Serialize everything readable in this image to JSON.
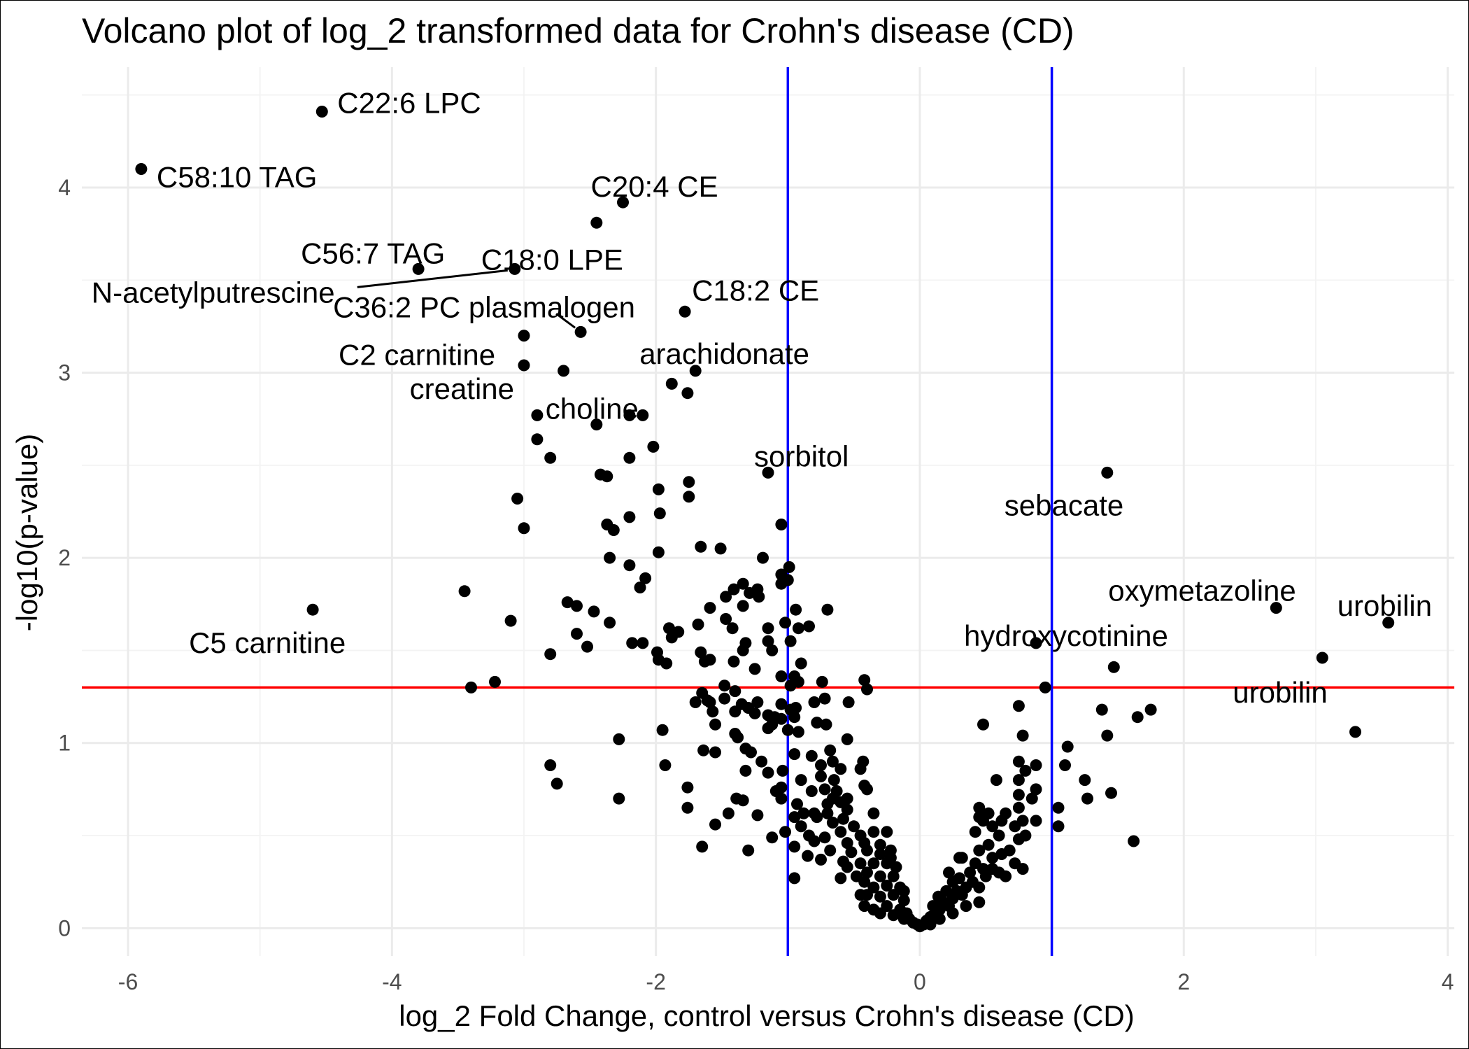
{
  "chart_data": {
    "type": "scatter",
    "title": "Volcano plot of log_2 transformed data for Crohn's disease (CD)",
    "xlabel": "log_2 Fold Change, control versus Crohn's disease (CD)",
    "ylabel": "-log10(p-value)",
    "xlim": [
      -6.35,
      4.05
    ],
    "ylim": [
      -0.15,
      4.65
    ],
    "x_ticks": [
      -6,
      -4,
      -2,
      0,
      2,
      4
    ],
    "y_ticks": [
      0,
      1,
      2,
      3,
      4
    ],
    "x_tick_labels": [
      "-6",
      "-4",
      "-2",
      "0",
      "2",
      "4"
    ],
    "y_tick_labels": [
      "0",
      "1",
      "2",
      "3",
      "4"
    ],
    "grid": true,
    "legend": "none",
    "colors": {
      "point": "#000000",
      "vline": "#0000ff",
      "hline": "#ff0000",
      "grid": "#ebebeb"
    },
    "reference_lines": {
      "vertical_x": [
        -1,
        1
      ],
      "horizontal_y": 1.3
    },
    "labels": [
      {
        "text": "C22:6 LPC",
        "x": -4.53,
        "y": 4.41
      },
      {
        "text": "C58:10 TAG",
        "x": -5.9,
        "y": 4.1
      },
      {
        "text": "C20:4 CE",
        "x": -2.25,
        "y": 3.92
      },
      {
        "text": "C56:7 TAG",
        "x": -3.8,
        "y": 3.56
      },
      {
        "text": "C18:0 LPE",
        "x": -3.07,
        "y": 3.56
      },
      {
        "text": "N-acetylputrescine",
        "x": -3.07,
        "y": 3.56
      },
      {
        "text": "C36:2 PC plasmalogen",
        "x": -2.57,
        "y": 3.22
      },
      {
        "text": "C18:2 CE",
        "x": -1.78,
        "y": 3.33
      },
      {
        "text": "C2 carnitine",
        "x": -3.0,
        "y": 3.2
      },
      {
        "text": "arachidonate",
        "x": -1.7,
        "y": 3.01
      },
      {
        "text": "creatine",
        "x": -2.7,
        "y": 3.01
      },
      {
        "text": "choline",
        "x": -2.45,
        "y": 2.72
      },
      {
        "text": "sorbitol",
        "x": -1.15,
        "y": 2.46
      },
      {
        "text": "sebacate",
        "x": 1.42,
        "y": 2.46
      },
      {
        "text": "oxymetazoline",
        "x": 2.7,
        "y": 1.73
      },
      {
        "text": "urobilin",
        "x": 3.55,
        "y": 1.65
      },
      {
        "text": "C5 carnitine",
        "x": -4.6,
        "y": 1.72
      },
      {
        "text": "hydroxycotinine",
        "x": 0.88,
        "y": 1.54
      },
      {
        "text": "urobilin",
        "x": 3.05,
        "y": 1.46
      }
    ],
    "points": [
      [
        -4.53,
        4.41
      ],
      [
        -5.9,
        4.1
      ],
      [
        -2.25,
        3.92
      ],
      [
        -2.45,
        3.81
      ],
      [
        -3.8,
        3.56
      ],
      [
        -3.07,
        3.56
      ],
      [
        -1.78,
        3.33
      ],
      [
        -2.57,
        3.22
      ],
      [
        -3.0,
        3.2
      ],
      [
        -3.0,
        3.04
      ],
      [
        -2.7,
        3.01
      ],
      [
        -1.7,
        3.01
      ],
      [
        -1.88,
        2.94
      ],
      [
        -1.76,
        2.89
      ],
      [
        -2.9,
        2.77
      ],
      [
        -2.2,
        2.77
      ],
      [
        -2.1,
        2.77
      ],
      [
        -2.45,
        2.72
      ],
      [
        -2.9,
        2.64
      ],
      [
        -2.02,
        2.6
      ],
      [
        -2.8,
        2.54
      ],
      [
        -2.2,
        2.54
      ],
      [
        -1.15,
        2.46
      ],
      [
        -2.42,
        2.45
      ],
      [
        -2.37,
        2.44
      ],
      [
        -1.75,
        2.41
      ],
      [
        -1.98,
        2.37
      ],
      [
        -1.75,
        2.33
      ],
      [
        -3.05,
        2.32
      ],
      [
        -2.2,
        2.22
      ],
      [
        -1.97,
        2.24
      ],
      [
        -3.0,
        2.16
      ],
      [
        -2.37,
        2.18
      ],
      [
        -2.32,
        2.15
      ],
      [
        -1.05,
        2.18
      ],
      [
        -1.66,
        2.06
      ],
      [
        -1.51,
        2.05
      ],
      [
        -1.98,
        2.03
      ],
      [
        -2.35,
        2.0
      ],
      [
        -1.19,
        2.0
      ],
      [
        -2.2,
        1.96
      ],
      [
        -0.99,
        1.95
      ],
      [
        -2.08,
        1.89
      ],
      [
        -1.34,
        1.86
      ],
      [
        -1.05,
        1.91
      ],
      [
        -1.23,
        1.83
      ],
      [
        -2.12,
        1.84
      ],
      [
        -1.29,
        1.81
      ],
      [
        -1.41,
        1.83
      ],
      [
        -1.05,
        1.86
      ],
      [
        -1.0,
        1.88
      ],
      [
        -3.45,
        1.82
      ],
      [
        -1.22,
        1.79
      ],
      [
        -1.47,
        1.79
      ],
      [
        -1.34,
        1.74
      ],
      [
        -1.59,
        1.73
      ],
      [
        -2.67,
        1.76
      ],
      [
        -2.6,
        1.74
      ],
      [
        -2.47,
        1.71
      ],
      [
        -0.94,
        1.72
      ],
      [
        -0.7,
        1.72
      ],
      [
        -3.1,
        1.66
      ],
      [
        -2.35,
        1.65
      ],
      [
        -1.68,
        1.64
      ],
      [
        -1.02,
        1.65
      ],
      [
        -1.47,
        1.67
      ],
      [
        -1.9,
        1.62
      ],
      [
        -0.84,
        1.63
      ],
      [
        -0.92,
        1.62
      ],
      [
        -1.83,
        1.6
      ],
      [
        -2.6,
        1.59
      ],
      [
        -1.42,
        1.62
      ],
      [
        -1.15,
        1.62
      ],
      [
        -2.18,
        1.54
      ],
      [
        -2.1,
        1.54
      ],
      [
        -1.88,
        1.57
      ],
      [
        -1.32,
        1.54
      ],
      [
        -1.15,
        1.55
      ],
      [
        -0.98,
        1.55
      ],
      [
        -2.52,
        1.52
      ],
      [
        -1.12,
        1.5
      ],
      [
        -1.66,
        1.49
      ],
      [
        -1.34,
        1.5
      ],
      [
        -2.8,
        1.48
      ],
      [
        -1.99,
        1.49
      ],
      [
        -1.98,
        1.45
      ],
      [
        -1.92,
        1.43
      ],
      [
        -1.59,
        1.45
      ],
      [
        -1.63,
        1.44
      ],
      [
        -1.41,
        1.44
      ],
      [
        -1.25,
        1.4
      ],
      [
        -0.9,
        1.43
      ],
      [
        -1.05,
        1.36
      ],
      [
        -0.95,
        1.36
      ],
      [
        -0.92,
        1.33
      ],
      [
        -0.74,
        1.33
      ],
      [
        -0.42,
        1.34
      ],
      [
        -3.22,
        1.33
      ],
      [
        -3.4,
        1.3
      ],
      [
        -1.48,
        1.31
      ],
      [
        -1.65,
        1.27
      ],
      [
        -1.4,
        1.28
      ],
      [
        -0.98,
        1.31
      ],
      [
        -0.4,
        1.29
      ],
      [
        -1.35,
        1.21
      ],
      [
        -1.48,
        1.24
      ],
      [
        -1.61,
        1.23
      ],
      [
        -1.59,
        1.22
      ],
      [
        -1.7,
        1.22
      ],
      [
        -1.3,
        1.19
      ],
      [
        -1.23,
        1.22
      ],
      [
        -1.05,
        1.21
      ],
      [
        -0.72,
        1.24
      ],
      [
        -0.54,
        1.22
      ],
      [
        -0.94,
        1.19
      ],
      [
        -0.8,
        1.22
      ],
      [
        -0.98,
        1.18
      ],
      [
        -1.1,
        1.14
      ],
      [
        -1.4,
        1.17
      ],
      [
        -1.57,
        1.17
      ],
      [
        -1.25,
        1.16
      ],
      [
        -1.15,
        1.15
      ],
      [
        -1.05,
        1.13
      ],
      [
        -0.95,
        1.14
      ],
      [
        -0.78,
        1.11
      ],
      [
        -0.71,
        1.1
      ],
      [
        -1.12,
        1.1
      ],
      [
        -1.55,
        1.1
      ],
      [
        -1.0,
        1.07
      ],
      [
        -1.95,
        1.07
      ],
      [
        -1.4,
        1.05
      ],
      [
        -1.15,
        1.08
      ],
      [
        -0.92,
        1.06
      ],
      [
        -0.55,
        1.02
      ],
      [
        -2.28,
        1.02
      ],
      [
        -1.38,
        1.03
      ],
      [
        -1.64,
        0.96
      ],
      [
        -1.55,
        0.95
      ],
      [
        -1.32,
        0.97
      ],
      [
        -1.28,
        0.95
      ],
      [
        -0.95,
        0.94
      ],
      [
        -0.82,
        0.93
      ],
      [
        -0.68,
        0.96
      ],
      [
        -0.43,
        0.9
      ],
      [
        -0.66,
        0.9
      ],
      [
        -0.75,
        0.88
      ],
      [
        -0.6,
        0.86
      ],
      [
        -0.45,
        0.86
      ],
      [
        -1.93,
        0.88
      ],
      [
        -2.8,
        0.88
      ],
      [
        -1.2,
        0.9
      ],
      [
        -1.32,
        0.85
      ],
      [
        -1.04,
        0.85
      ],
      [
        -1.15,
        0.84
      ],
      [
        -0.9,
        0.8
      ],
      [
        -0.75,
        0.82
      ],
      [
        -0.65,
        0.8
      ],
      [
        -0.42,
        0.77
      ],
      [
        -0.4,
        0.75
      ],
      [
        -0.63,
        0.74
      ],
      [
        -0.72,
        0.75
      ],
      [
        -0.82,
        0.74
      ],
      [
        -1.05,
        0.76
      ],
      [
        -1.09,
        0.74
      ],
      [
        -1.76,
        0.76
      ],
      [
        -2.75,
        0.78
      ],
      [
        -1.39,
        0.7
      ],
      [
        -1.34,
        0.69
      ],
      [
        -1.05,
        0.7
      ],
      [
        -0.93,
        0.67
      ],
      [
        -0.66,
        0.7
      ],
      [
        -0.55,
        0.7
      ],
      [
        -0.6,
        0.68
      ],
      [
        -0.7,
        0.67
      ],
      [
        -1.76,
        0.65
      ],
      [
        -2.28,
        0.7
      ],
      [
        -0.88,
        0.62
      ],
      [
        -0.8,
        0.62
      ],
      [
        -0.7,
        0.62
      ],
      [
        -0.55,
        0.64
      ],
      [
        -1.23,
        0.61
      ],
      [
        -1.45,
        0.62
      ],
      [
        -0.95,
        0.6
      ],
      [
        -0.78,
        0.6
      ],
      [
        -0.66,
        0.57
      ],
      [
        -0.58,
        0.59
      ],
      [
        -0.35,
        0.62
      ],
      [
        -1.55,
        0.56
      ],
      [
        -0.9,
        0.55
      ],
      [
        -0.6,
        0.52
      ],
      [
        -0.5,
        0.55
      ],
      [
        -0.45,
        0.5
      ],
      [
        -0.35,
        0.52
      ],
      [
        -0.25,
        0.52
      ],
      [
        -1.02,
        0.52
      ],
      [
        -0.84,
        0.5
      ],
      [
        -0.72,
        0.49
      ],
      [
        -1.12,
        0.49
      ],
      [
        -0.8,
        0.47
      ],
      [
        -0.55,
        0.46
      ],
      [
        -0.42,
        0.46
      ],
      [
        -0.3,
        0.45
      ],
      [
        -1.65,
        0.44
      ],
      [
        -1.3,
        0.42
      ],
      [
        -0.95,
        0.44
      ],
      [
        -0.68,
        0.42
      ],
      [
        -0.52,
        0.41
      ],
      [
        -0.4,
        0.42
      ],
      [
        -0.3,
        0.4
      ],
      [
        -0.22,
        0.42
      ],
      [
        -0.85,
        0.39
      ],
      [
        -0.75,
        0.37
      ],
      [
        -0.58,
        0.36
      ],
      [
        -0.45,
        0.35
      ],
      [
        -0.35,
        0.35
      ],
      [
        -0.25,
        0.35
      ],
      [
        -0.18,
        0.33
      ],
      [
        -0.95,
        0.27
      ],
      [
        -0.55,
        0.33
      ],
      [
        -0.4,
        0.3
      ],
      [
        -0.3,
        0.28
      ],
      [
        -0.2,
        0.28
      ],
      [
        -0.6,
        0.27
      ],
      [
        -0.42,
        0.25
      ],
      [
        -0.35,
        0.22
      ],
      [
        -0.25,
        0.23
      ],
      [
        -0.15,
        0.22
      ],
      [
        -0.4,
        0.18
      ],
      [
        -0.3,
        0.17
      ],
      [
        -0.2,
        0.18
      ],
      [
        -0.12,
        0.15
      ],
      [
        -0.42,
        0.12
      ],
      [
        -0.35,
        0.1
      ],
      [
        -0.25,
        0.12
      ],
      [
        -0.15,
        0.1
      ],
      [
        -0.1,
        0.08
      ],
      [
        -0.3,
        0.08
      ],
      [
        -0.2,
        0.07
      ],
      [
        -0.12,
        0.05
      ],
      [
        -0.08,
        0.05
      ],
      [
        -0.05,
        0.03
      ],
      [
        -0.02,
        0.02
      ],
      [
        0.0,
        0.01
      ],
      [
        0.03,
        0.02
      ],
      [
        0.05,
        0.04
      ],
      [
        0.08,
        0.06
      ],
      [
        0.12,
        0.08
      ],
      [
        0.1,
        0.12
      ],
      [
        0.15,
        0.1
      ],
      [
        0.18,
        0.14
      ],
      [
        0.22,
        0.12
      ],
      [
        0.25,
        0.16
      ],
      [
        0.14,
        0.17
      ],
      [
        0.2,
        0.2
      ],
      [
        0.28,
        0.2
      ],
      [
        0.32,
        0.18
      ],
      [
        0.35,
        0.22
      ],
      [
        0.25,
        0.25
      ],
      [
        0.3,
        0.27
      ],
      [
        0.4,
        0.25
      ],
      [
        0.45,
        0.22
      ],
      [
        0.5,
        0.28
      ],
      [
        0.38,
        0.3
      ],
      [
        0.42,
        0.35
      ],
      [
        0.48,
        0.32
      ],
      [
        0.55,
        0.32
      ],
      [
        0.6,
        0.3
      ],
      [
        0.65,
        0.28
      ],
      [
        0.72,
        0.35
      ],
      [
        0.55,
        0.38
      ],
      [
        0.62,
        0.4
      ],
      [
        0.68,
        0.42
      ],
      [
        0.78,
        0.32
      ],
      [
        0.32,
        0.38
      ],
      [
        0.45,
        0.42
      ],
      [
        0.52,
        0.45
      ],
      [
        0.75,
        0.48
      ],
      [
        0.6,
        0.5
      ],
      [
        0.55,
        0.55
      ],
      [
        0.45,
        0.6
      ],
      [
        0.52,
        0.62
      ],
      [
        0.62,
        0.58
      ],
      [
        0.72,
        0.55
      ],
      [
        0.78,
        0.58
      ],
      [
        0.8,
        0.5
      ],
      [
        0.45,
        0.65
      ],
      [
        0.65,
        0.62
      ],
      [
        0.75,
        0.65
      ],
      [
        0.88,
        0.58
      ],
      [
        0.42,
        0.52
      ],
      [
        0.48,
        0.58
      ],
      [
        0.58,
        0.8
      ],
      [
        0.75,
        0.72
      ],
      [
        0.85,
        0.7
      ],
      [
        0.88,
        0.75
      ],
      [
        0.75,
        0.8
      ],
      [
        0.8,
        0.85
      ],
      [
        0.88,
        0.88
      ],
      [
        0.75,
        0.9
      ],
      [
        1.05,
        0.55
      ],
      [
        1.05,
        0.65
      ],
      [
        1.1,
        0.88
      ],
      [
        1.12,
        0.98
      ],
      [
        1.25,
        0.8
      ],
      [
        1.27,
        0.7
      ],
      [
        1.45,
        0.73
      ],
      [
        1.42,
        1.04
      ],
      [
        1.38,
        1.18
      ],
      [
        1.65,
        1.14
      ],
      [
        1.75,
        1.18
      ],
      [
        1.62,
        0.47
      ],
      [
        0.78,
        1.04
      ],
      [
        0.48,
        1.1
      ],
      [
        0.75,
        1.2
      ],
      [
        0.95,
        1.3
      ],
      [
        0.88,
        1.54
      ],
      [
        1.47,
        1.41
      ],
      [
        1.42,
        2.46
      ],
      [
        2.7,
        1.73
      ],
      [
        3.55,
        1.65
      ],
      [
        3.05,
        1.46
      ],
      [
        3.3,
        1.06
      ],
      [
        -4.6,
        1.72
      ],
      [
        0.45,
        0.14
      ],
      [
        0.35,
        0.12
      ],
      [
        0.15,
        0.05
      ],
      [
        0.08,
        0.02
      ],
      [
        -0.45,
        0.18
      ],
      [
        -0.48,
        0.28
      ],
      [
        -0.22,
        0.38
      ],
      [
        0.25,
        0.08
      ],
      [
        -0.12,
        0.2
      ],
      [
        0.3,
        0.38
      ],
      [
        0.22,
        0.3
      ]
    ]
  }
}
